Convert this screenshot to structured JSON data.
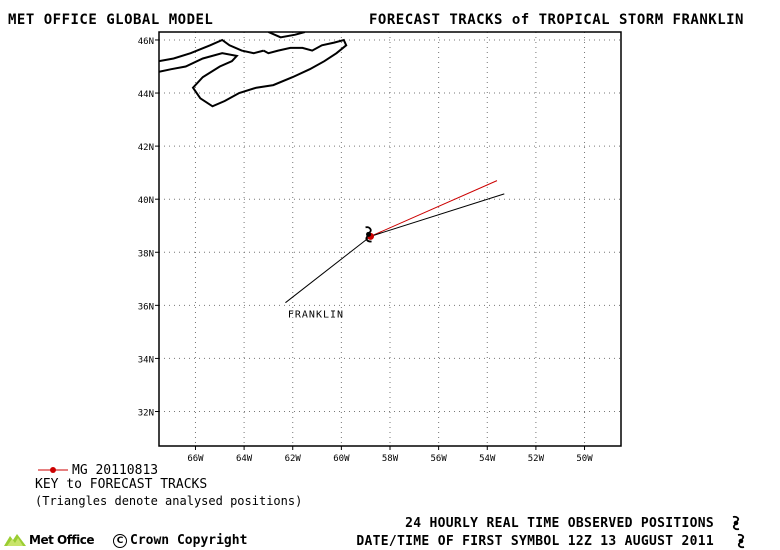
{
  "header": {
    "left_title": "MET OFFICE GLOBAL MODEL",
    "right_title": "FORECAST TRACKS of TROPICAL STORM FRANKLIN"
  },
  "map": {
    "lon_range": [
      -67.5,
      -48.5
    ],
    "lat_range": [
      30.7,
      46.3
    ],
    "lat_ticks": [
      {
        "lat": 46,
        "label": "46N"
      },
      {
        "lat": 44,
        "label": "44N"
      },
      {
        "lat": 42,
        "label": "42N"
      },
      {
        "lat": 40,
        "label": "40N"
      },
      {
        "lat": 38,
        "label": "38N"
      },
      {
        "lat": 36,
        "label": "36N"
      },
      {
        "lat": 34,
        "label": "34N"
      },
      {
        "lat": 32,
        "label": "32N"
      }
    ],
    "lon_ticks": [
      {
        "lon": -66,
        "label": "66W"
      },
      {
        "lon": -64,
        "label": "64W"
      },
      {
        "lon": -62,
        "label": "62W"
      },
      {
        "lon": -60,
        "label": "60W"
      },
      {
        "lon": -58,
        "label": "58W"
      },
      {
        "lon": -56,
        "label": "56W"
      },
      {
        "lon": -54,
        "label": "54W"
      },
      {
        "lon": -52,
        "label": "52W"
      },
      {
        "lon": -50,
        "label": "50W"
      }
    ],
    "grid": true,
    "storm_label": "FRANKLIN",
    "storm_label_pos": {
      "lon": -62.2,
      "lat": 35.7
    },
    "observed_track": [
      {
        "lon": -62.3,
        "lat": 36.1
      },
      {
        "lon": -58.8,
        "lat": 38.6
      }
    ],
    "forecast_tracks": [
      {
        "name": "MG 20110813",
        "color": "#cc0000",
        "points": [
          {
            "lon": -58.8,
            "lat": 38.6
          },
          {
            "lon": -53.6,
            "lat": 40.7
          }
        ]
      },
      {
        "name": "",
        "color": "#000000",
        "points": [
          {
            "lon": -58.8,
            "lat": 38.6
          },
          {
            "lon": -53.3,
            "lat": 40.2
          }
        ]
      }
    ],
    "storm_symbol_pos": {
      "lon": -58.8,
      "lat": 38.6
    },
    "coastlines": [
      [
        {
          "lon": -67.5,
          "lat": 45.2
        },
        {
          "lon": -66.9,
          "lat": 45.3
        },
        {
          "lon": -66.2,
          "lat": 45.5
        },
        {
          "lon": -65.4,
          "lat": 45.8
        },
        {
          "lon": -64.9,
          "lat": 46.0
        },
        {
          "lon": -64.6,
          "lat": 45.8
        },
        {
          "lon": -64.1,
          "lat": 45.6
        },
        {
          "lon": -63.6,
          "lat": 45.5
        },
        {
          "lon": -63.2,
          "lat": 45.6
        }
      ],
      [
        {
          "lon": -63.2,
          "lat": 45.6
        },
        {
          "lon": -63.0,
          "lat": 45.5
        },
        {
          "lon": -62.6,
          "lat": 45.6
        },
        {
          "lon": -62.1,
          "lat": 45.7
        },
        {
          "lon": -61.6,
          "lat": 45.7
        },
        {
          "lon": -61.2,
          "lat": 45.6
        },
        {
          "lon": -60.8,
          "lat": 45.8
        },
        {
          "lon": -60.3,
          "lat": 45.9
        },
        {
          "lon": -59.9,
          "lat": 46.0
        },
        {
          "lon": -59.8,
          "lat": 45.8
        },
        {
          "lon": -60.2,
          "lat": 45.5
        },
        {
          "lon": -60.7,
          "lat": 45.2
        },
        {
          "lon": -61.3,
          "lat": 44.9
        },
        {
          "lon": -62.0,
          "lat": 44.6
        },
        {
          "lon": -62.8,
          "lat": 44.3
        },
        {
          "lon": -63.5,
          "lat": 44.2
        },
        {
          "lon": -64.2,
          "lat": 44.0
        },
        {
          "lon": -64.8,
          "lat": 43.7
        },
        {
          "lon": -65.3,
          "lat": 43.5
        },
        {
          "lon": -65.8,
          "lat": 43.8
        },
        {
          "lon": -66.1,
          "lat": 44.2
        },
        {
          "lon": -65.7,
          "lat": 44.6
        },
        {
          "lon": -65.0,
          "lat": 45.0
        },
        {
          "lon": -64.5,
          "lat": 45.2
        },
        {
          "lon": -64.3,
          "lat": 45.4
        },
        {
          "lon": -64.9,
          "lat": 45.5
        },
        {
          "lon": -65.7,
          "lat": 45.3
        },
        {
          "lon": -66.4,
          "lat": 45.0
        },
        {
          "lon": -67.0,
          "lat": 44.9
        },
        {
          "lon": -67.5,
          "lat": 44.8
        }
      ],
      [
        {
          "lon": -63.0,
          "lat": 46.3
        },
        {
          "lon": -62.5,
          "lat": 46.1
        },
        {
          "lon": -61.9,
          "lat": 46.2
        },
        {
          "lon": -61.5,
          "lat": 46.3
        }
      ]
    ]
  },
  "legend": {
    "entry_label": "MG 20110813",
    "entry_color": "#cc0000",
    "key_title": "KEY to FORECAST TRACKS",
    "key_note": "(Triangles denote analysed positions)"
  },
  "footer": {
    "observed_text": "24 HOURLY REAL TIME OBSERVED POSITIONS",
    "datetime_text": "DATE/TIME OF FIRST SYMBOL 12Z 13 AUGUST 2011",
    "logo_text": "Met Office",
    "copyright_text": "Crown Copyright",
    "copyright_mark": "C"
  }
}
